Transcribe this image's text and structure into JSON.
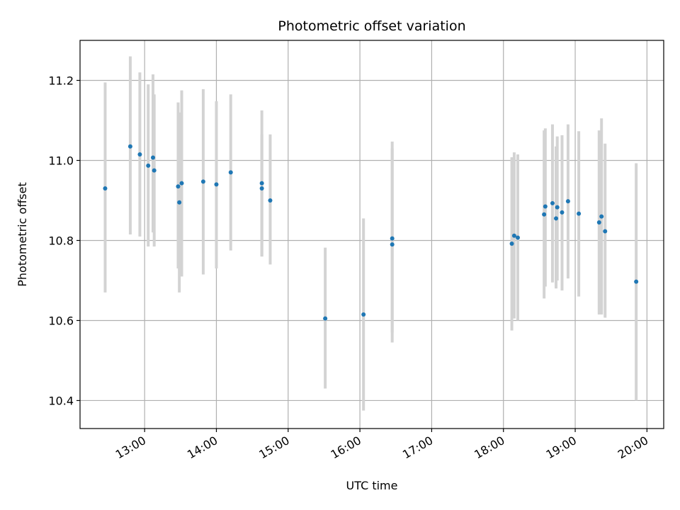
{
  "chart_data": {
    "type": "scatter",
    "title": "Photometric offset variation",
    "xlabel": "UTC time",
    "ylabel": "Photometric offset",
    "x_ticks": [
      "13:00",
      "14:00",
      "15:00",
      "16:00",
      "17:00",
      "18:00",
      "19:00",
      "20:00"
    ],
    "y_ticks": [
      10.4,
      10.6,
      10.8,
      11.0,
      11.2
    ],
    "xlim": [
      "12:06",
      "20:14"
    ],
    "ylim": [
      10.33,
      11.3
    ],
    "grid": true,
    "colors": {
      "points": "#1f77b4",
      "errorbars": "#d3d3d3",
      "grid": "#b0b0b0"
    },
    "points": [
      {
        "x": "12:27",
        "y": 10.93,
        "low": 10.67,
        "high": 11.195
      },
      {
        "x": "12:48",
        "y": 11.035,
        "low": 10.815,
        "high": 11.26
      },
      {
        "x": "12:56",
        "y": 11.015,
        "low": 10.81,
        "high": 11.22
      },
      {
        "x": "13:03",
        "y": 10.987,
        "low": 10.785,
        "high": 11.19
      },
      {
        "x": "13:07",
        "y": 11.007,
        "low": 10.82,
        "high": 11.215
      },
      {
        "x": "13:08",
        "y": 10.975,
        "low": 10.785,
        "high": 11.165
      },
      {
        "x": "13:28",
        "y": 10.935,
        "low": 10.73,
        "high": 11.145
      },
      {
        "x": "13:29",
        "y": 10.895,
        "low": 10.67,
        "high": 11.12
      },
      {
        "x": "13:31",
        "y": 10.943,
        "low": 10.71,
        "high": 11.175
      },
      {
        "x": "13:49",
        "y": 10.947,
        "low": 10.715,
        "high": 11.178
      },
      {
        "x": "14:00",
        "y": 10.94,
        "low": 10.73,
        "high": 11.148
      },
      {
        "x": "14:12",
        "y": 10.97,
        "low": 10.775,
        "high": 11.165
      },
      {
        "x": "14:38",
        "y": 10.93,
        "low": 10.76,
        "high": 11.065
      },
      {
        "x": "14:38",
        "y": 10.943,
        "low": 10.76,
        "high": 11.125
      },
      {
        "x": "14:45",
        "y": 10.9,
        "low": 10.74,
        "high": 11.065
      },
      {
        "x": "15:31",
        "y": 10.605,
        "low": 10.43,
        "high": 10.782
      },
      {
        "x": "16:03",
        "y": 10.615,
        "low": 10.375,
        "high": 10.855
      },
      {
        "x": "16:27",
        "y": 10.805,
        "low": 10.57,
        "high": 11.047
      },
      {
        "x": "16:27",
        "y": 10.79,
        "low": 10.545,
        "high": 11.03
      },
      {
        "x": "18:07",
        "y": 10.792,
        "low": 10.575,
        "high": 11.008
      },
      {
        "x": "18:09",
        "y": 10.812,
        "low": 10.605,
        "high": 11.02
      },
      {
        "x": "18:12",
        "y": 10.807,
        "low": 10.6,
        "high": 11.015
      },
      {
        "x": "18:34",
        "y": 10.865,
        "low": 10.655,
        "high": 11.075
      },
      {
        "x": "18:35",
        "y": 10.885,
        "low": 10.685,
        "high": 11.08
      },
      {
        "x": "18:41",
        "y": 10.893,
        "low": 10.695,
        "high": 11.09
      },
      {
        "x": "18:44",
        "y": 10.855,
        "low": 10.68,
        "high": 11.035
      },
      {
        "x": "18:45",
        "y": 10.883,
        "low": 10.7,
        "high": 11.06
      },
      {
        "x": "18:49",
        "y": 10.87,
        "low": 10.675,
        "high": 11.063
      },
      {
        "x": "18:54",
        "y": 10.898,
        "low": 10.705,
        "high": 11.09
      },
      {
        "x": "19:03",
        "y": 10.867,
        "low": 10.66,
        "high": 11.073
      },
      {
        "x": "19:20",
        "y": 10.845,
        "low": 10.615,
        "high": 11.075
      },
      {
        "x": "19:22",
        "y": 10.86,
        "low": 10.615,
        "high": 11.105
      },
      {
        "x": "19:25",
        "y": 10.823,
        "low": 10.607,
        "high": 11.042
      },
      {
        "x": "19:51",
        "y": 10.697,
        "low": 10.4,
        "high": 10.993
      }
    ]
  }
}
